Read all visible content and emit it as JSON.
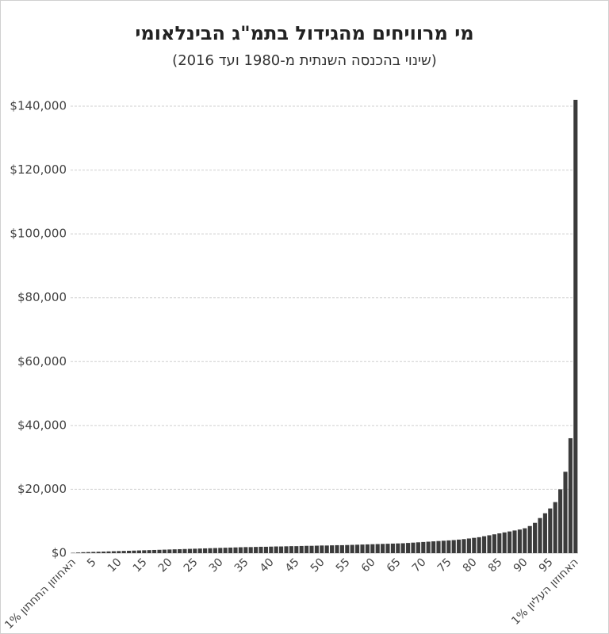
{
  "chart_data": {
    "type": "bar",
    "title": "מי מרוויחים מהגידול בתמ\"ג הבינלאומי",
    "subtitle": "(שינוי בהכנסה השנתית מ-1980 ועד 2016)",
    "color": "#3b3b3b",
    "grid": true,
    "ylim": [
      0,
      140000
    ],
    "yticks": [
      {
        "value": 0,
        "label": "$0"
      },
      {
        "value": 20000,
        "label": "$20,000"
      },
      {
        "value": 40000,
        "label": "$40,000"
      },
      {
        "value": 60000,
        "label": "$60,000"
      },
      {
        "value": 80000,
        "label": "$80,000"
      },
      {
        "value": 100000,
        "label": "$100,000"
      },
      {
        "value": 120000,
        "label": "$120,000"
      },
      {
        "value": 140000,
        "label": "$140,000"
      }
    ],
    "categories": [
      "1% האחוזון התחתון",
      null,
      null,
      null,
      "5",
      null,
      null,
      null,
      null,
      "10",
      null,
      null,
      null,
      null,
      "15",
      null,
      null,
      null,
      null,
      "20",
      null,
      null,
      null,
      null,
      "25",
      null,
      null,
      null,
      null,
      "30",
      null,
      null,
      null,
      null,
      "35",
      null,
      null,
      null,
      null,
      "40",
      null,
      null,
      null,
      null,
      "45",
      null,
      null,
      null,
      null,
      "50",
      null,
      null,
      null,
      null,
      "55",
      null,
      null,
      null,
      null,
      "60",
      null,
      null,
      null,
      null,
      "65",
      null,
      null,
      null,
      null,
      "70",
      null,
      null,
      null,
      null,
      "75",
      null,
      null,
      null,
      null,
      "80",
      null,
      null,
      null,
      null,
      "85",
      null,
      null,
      null,
      null,
      "90",
      null,
      null,
      null,
      null,
      "95",
      null,
      null,
      null,
      null,
      "1% האחוזון העליון"
    ],
    "values": [
      100,
      200,
      300,
      350,
      400,
      450,
      500,
      550,
      600,
      650,
      700,
      750,
      800,
      850,
      900,
      950,
      1000,
      1050,
      1100,
      1150,
      1200,
      1250,
      1300,
      1350,
      1400,
      1450,
      1500,
      1550,
      1600,
      1650,
      1700,
      1750,
      1800,
      1850,
      1900,
      1900,
      1950,
      2000,
      2000,
      2050,
      2100,
      2100,
      2150,
      2200,
      2200,
      2250,
      2300,
      2300,
      2350,
      2400,
      2400,
      2450,
      2500,
      2500,
      2550,
      2600,
      2650,
      2700,
      2750,
      2800,
      2850,
      2900,
      2950,
      3000,
      3050,
      3100,
      3200,
      3300,
      3400,
      3500,
      3600,
      3700,
      3800,
      3900,
      4000,
      4100,
      4250,
      4400,
      4600,
      4800,
      5000,
      5300,
      5600,
      5900,
      6200,
      6500,
      6800,
      7100,
      7400,
      7800,
      8500,
      9500,
      11000,
      12500,
      14000,
      16000,
      20000,
      25500,
      36000,
      142000
    ]
  }
}
